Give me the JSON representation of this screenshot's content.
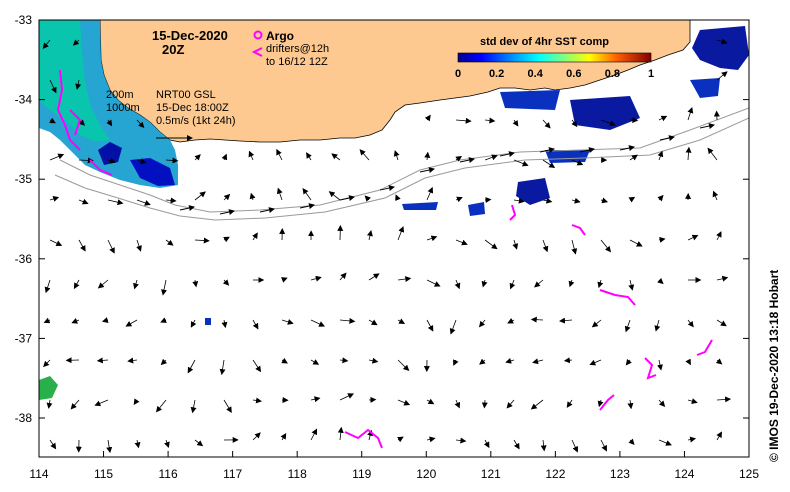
{
  "map": {
    "date": "15-Dec-2020",
    "time": "20Z",
    "argo_label": "Argo",
    "drifters_line1": "drifters@12h",
    "drifters_line2": "to 16/12 12Z",
    "isobath_1": "200m",
    "isobath_2": "1000m",
    "current_source": "NRT00 GSL",
    "current_date": "15-Dec 18:00Z",
    "current_scale": "0.5m/s (1kt 24h)",
    "colorbar_title": "std dev of 4hr SST comp",
    "colorbar_ticks": [
      "0",
      "0.2",
      "0.4",
      "0.6",
      "0.8",
      "1"
    ],
    "credit": "© IMOS 19-Dec-2020 13:18 Hobart",
    "x_ticks": [
      "114",
      "115",
      "116",
      "117",
      "118",
      "119",
      "120",
      "121",
      "122",
      "123",
      "124",
      "125"
    ],
    "y_ticks": [
      "-33",
      "-34",
      "-35",
      "-36",
      "-37",
      "-38"
    ],
    "colors": {
      "land": "#fdc990",
      "drifter": "#ff00ff",
      "sst_low": "#00008b",
      "sst_high": "#8b0000"
    }
  }
}
